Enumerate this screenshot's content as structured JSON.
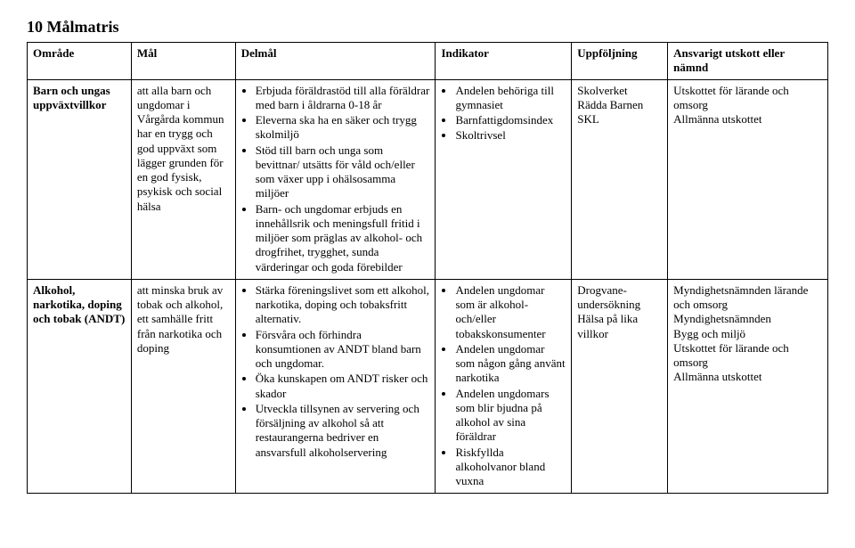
{
  "title": "10  Målmatris",
  "headers": {
    "omrade": "Område",
    "mal": "Mål",
    "delmal": "Delmål",
    "indikator": "Indikator",
    "uppfoljning": "Uppföljning",
    "ansvarig": "Ansvarigt utskott eller nämnd"
  },
  "rows": [
    {
      "omrade": "Barn och ungas uppväxtvillkor",
      "mal": "att alla barn och ungdomar i Vårgårda kommun har en trygg och god uppväxt som lägger grunden för en god fysisk, psykisk och social hälsa",
      "delmal": [
        "Erbjuda föräldrastöd till alla föräldrar med barn i åldrarna 0-18 år",
        "Eleverna ska ha en säker och trygg skolmiljö",
        "Stöd till barn och unga som bevittnar/ utsätts för våld och/eller som växer upp i ohälsosamma miljöer",
        "Barn- och ungdomar erbjuds en innehållsrik och meningsfull fritid i miljöer som präglas av alkohol- och drogfrihet, trygghet, sunda värderingar och goda förebilder"
      ],
      "indikator": [
        "Andelen behöriga till gymnasiet",
        "Barnfattigdomsindex",
        "Skoltrivsel"
      ],
      "uppfoljning": "Skolverket\nRädda Barnen\nSKL",
      "ansvarig": "Utskottet för lärande och omsorg\nAllmänna utskottet"
    },
    {
      "omrade": "Alkohol, narkotika, doping och tobak (ANDT)",
      "mal": "att minska bruk av tobak och alkohol, ett samhälle fritt från narkotika och doping",
      "delmal": [
        "Stärka föreningslivet som ett alkohol, narkotika, doping och tobaksfritt alternativ.",
        "Försvåra och förhindra konsumtionen av ANDT bland barn och ungdomar.",
        "Öka kunskapen om ANDT risker och skador",
        "Utveckla tillsynen av servering och försäljning av alkohol så att restaurangerna bedriver en ansvarsfull alkoholservering"
      ],
      "indikator": [
        "Andelen ungdomar som är alkohol- och/eller tobakskonsumenter",
        "Andelen ungdomar som någon gång använt narkotika",
        "Andelen ungdomars som blir bjudna på alkohol av sina föräldrar",
        "Riskfyllda alkoholvanor bland vuxna"
      ],
      "uppfoljning": "Drogvane-undersökning\nHälsa på lika villkor",
      "ansvarig": "Myndighetsnämnden lärande och omsorg\nMyndighetsnämnden\nBygg och miljö\nUtskottet för lärande och omsorg\nAllmänna utskottet"
    }
  ]
}
